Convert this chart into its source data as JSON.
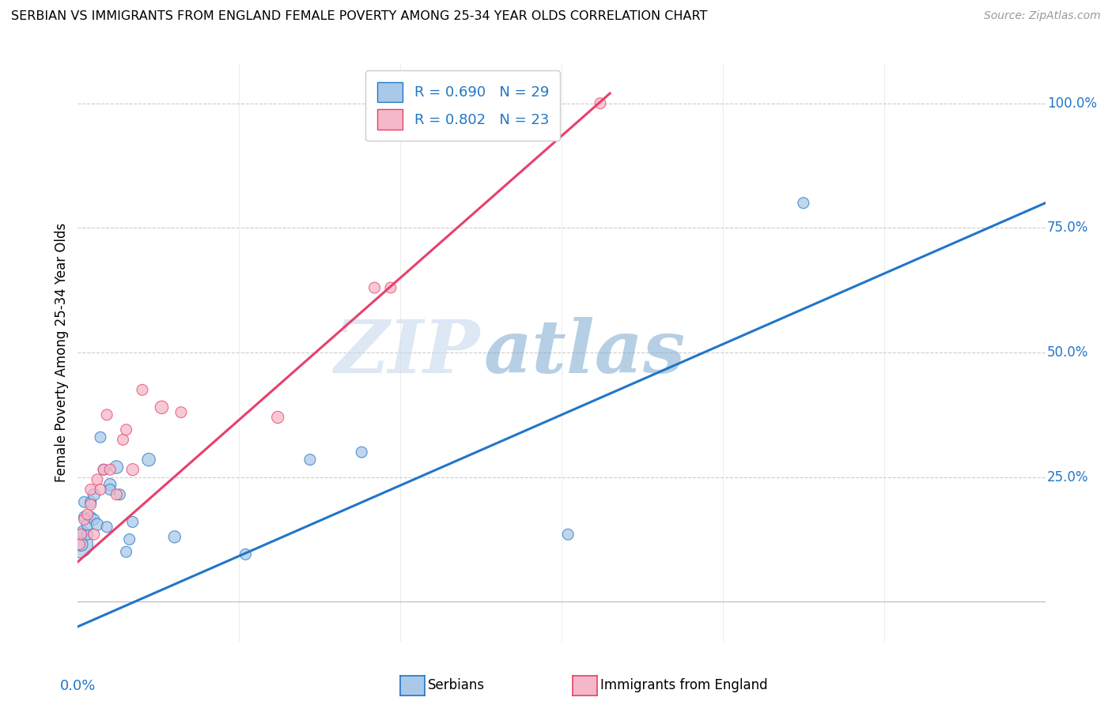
{
  "title": "SERBIAN VS IMMIGRANTS FROM ENGLAND FEMALE POVERTY AMONG 25-34 YEAR OLDS CORRELATION CHART",
  "source": "Source: ZipAtlas.com",
  "ylabel": "Female Poverty Among 25-34 Year Olds",
  "y_ticks": [
    0.0,
    0.25,
    0.5,
    0.75,
    1.0
  ],
  "y_tick_labels": [
    "",
    "25.0%",
    "50.0%",
    "75.0%",
    "100.0%"
  ],
  "xmin": 0.0,
  "xmax": 0.3,
  "ymin": -0.08,
  "ymax": 1.08,
  "serbians_R": 0.69,
  "serbians_N": 29,
  "england_R": 0.802,
  "england_N": 23,
  "serbians_color": "#aac9e8",
  "england_color": "#f5b8c8",
  "serbians_line_color": "#2176c7",
  "england_line_color": "#e8406a",
  "watermark_zip": "ZIP",
  "watermark_atlas": "atlas",
  "serbians_x": [
    0.0005,
    0.001,
    0.0015,
    0.002,
    0.002,
    0.003,
    0.003,
    0.004,
    0.004,
    0.005,
    0.005,
    0.006,
    0.007,
    0.008,
    0.009,
    0.01,
    0.01,
    0.012,
    0.013,
    0.015,
    0.016,
    0.017,
    0.022,
    0.03,
    0.052,
    0.072,
    0.088,
    0.152,
    0.225
  ],
  "serbians_y": [
    0.115,
    0.115,
    0.14,
    0.17,
    0.2,
    0.135,
    0.155,
    0.17,
    0.2,
    0.165,
    0.215,
    0.155,
    0.33,
    0.265,
    0.15,
    0.235,
    0.225,
    0.27,
    0.215,
    0.1,
    0.125,
    0.16,
    0.285,
    0.13,
    0.095,
    0.285,
    0.3,
    0.135,
    0.8
  ],
  "serbians_sizes": [
    600,
    150,
    120,
    100,
    100,
    100,
    120,
    100,
    100,
    100,
    120,
    120,
    100,
    100,
    100,
    120,
    100,
    140,
    100,
    100,
    100,
    100,
    140,
    120,
    100,
    100,
    100,
    100,
    100
  ],
  "england_x": [
    0.0005,
    0.001,
    0.002,
    0.003,
    0.004,
    0.004,
    0.005,
    0.006,
    0.007,
    0.008,
    0.009,
    0.01,
    0.012,
    0.014,
    0.015,
    0.017,
    0.02,
    0.026,
    0.032,
    0.062,
    0.092,
    0.097,
    0.162
  ],
  "england_y": [
    0.115,
    0.135,
    0.165,
    0.175,
    0.195,
    0.225,
    0.135,
    0.245,
    0.225,
    0.265,
    0.375,
    0.265,
    0.215,
    0.325,
    0.345,
    0.265,
    0.425,
    0.39,
    0.38,
    0.37,
    0.63,
    0.63,
    1.0
  ],
  "england_sizes": [
    100,
    100,
    100,
    100,
    100,
    100,
    100,
    100,
    100,
    100,
    100,
    100,
    100,
    100,
    100,
    120,
    100,
    140,
    100,
    120,
    100,
    100,
    100
  ],
  "blue_line_x": [
    0.0,
    0.3
  ],
  "blue_line_y": [
    -0.05,
    0.8
  ],
  "pink_line_x": [
    0.0,
    0.165
  ],
  "pink_line_y": [
    0.08,
    1.02
  ]
}
